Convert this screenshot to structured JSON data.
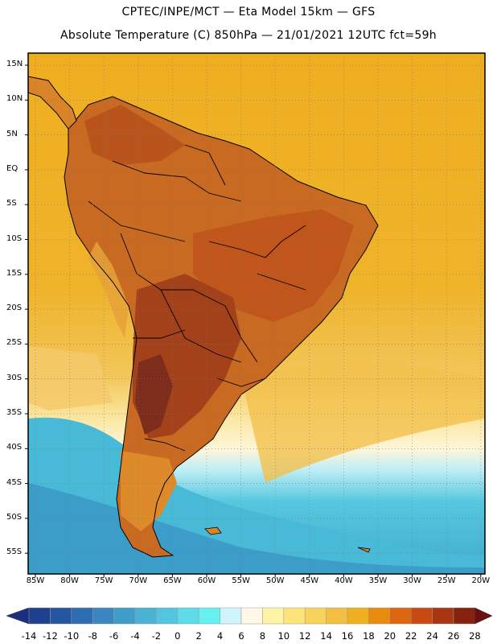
{
  "title_line1": "CPTEC/INPE/MCT —  Eta Model 15km — GFS",
  "title_line2": "Absolute Temperature (C) 850hPa — 21/01/2021 12UTC fct=59h",
  "lat_labels": [
    "15N",
    "10N",
    "5N",
    "EQ",
    "5S",
    "10S",
    "15S",
    "20S",
    "25S",
    "30S",
    "35S",
    "40S",
    "45S",
    "50S",
    "55S"
  ],
  "lon_labels": [
    "85W",
    "80W",
    "75W",
    "70W",
    "65W",
    "60W",
    "55W",
    "50W",
    "45W",
    "40W",
    "35W",
    "30W",
    "25W",
    "20W"
  ],
  "colorbar": {
    "labels": [
      "-14",
      "-12",
      "-10",
      "-8",
      "-6",
      "-4",
      "-2",
      "0",
      "2",
      "4",
      "6",
      "8",
      "10",
      "12",
      "14",
      "16",
      "18",
      "20",
      "22",
      "24",
      "26",
      "28"
    ],
    "colors": [
      "#1f3f8f",
      "#2557a0",
      "#2f6db2",
      "#3a86c0",
      "#3f9dc8",
      "#4cb2d4",
      "#52c6de",
      "#5ddbe8",
      "#66f0f0",
      "#d0f4fb",
      "#fff8e6",
      "#fff3a6",
      "#fce37a",
      "#f8d25a",
      "#f3bf40",
      "#efaf1f",
      "#e98c0c",
      "#dd6610",
      "#c84a12",
      "#a83612",
      "#852210"
    ]
  },
  "colors": {
    "ocean_north": "#eeab1f",
    "ocean_mid": "#f1c144",
    "ocean_south_cold": "#4cbfd8",
    "ocean_south_deep": "#3fa6cc",
    "land_hot": "#c55a18",
    "land_very_hot": "#8a3417"
  }
}
